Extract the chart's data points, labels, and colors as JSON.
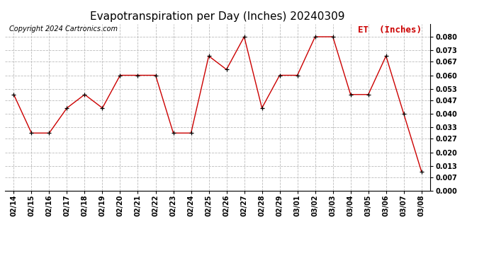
{
  "title": "Evapotranspiration per Day (Inches) 20240309",
  "copyright": "Copyright 2024 Cartronics.com",
  "legend_label": "ET  (Inches)",
  "dates": [
    "02/14",
    "02/15",
    "02/16",
    "02/17",
    "02/18",
    "02/19",
    "02/20",
    "02/21",
    "02/22",
    "02/23",
    "02/24",
    "02/25",
    "02/26",
    "02/27",
    "02/28",
    "02/29",
    "03/01",
    "03/02",
    "03/03",
    "03/04",
    "03/05",
    "03/06",
    "03/07",
    "03/08"
  ],
  "values": [
    0.05,
    0.03,
    0.03,
    0.043,
    0.05,
    0.043,
    0.06,
    0.06,
    0.06,
    0.03,
    0.03,
    0.07,
    0.063,
    0.08,
    0.043,
    0.06,
    0.06,
    0.08,
    0.08,
    0.05,
    0.05,
    0.07,
    0.04,
    0.01
  ],
  "line_color": "#cc0000",
  "marker_color": "#000000",
  "grid_color": "#bbbbbb",
  "bg_color": "#ffffff",
  "ylim": [
    0.0,
    0.0867
  ],
  "yticks": [
    0.0,
    0.007,
    0.013,
    0.02,
    0.027,
    0.033,
    0.04,
    0.047,
    0.053,
    0.06,
    0.067,
    0.073,
    0.08
  ],
  "title_fontsize": 11,
  "legend_fontsize": 9,
  "copyright_fontsize": 7,
  "tick_fontsize": 7,
  "legend_color": "#cc0000"
}
